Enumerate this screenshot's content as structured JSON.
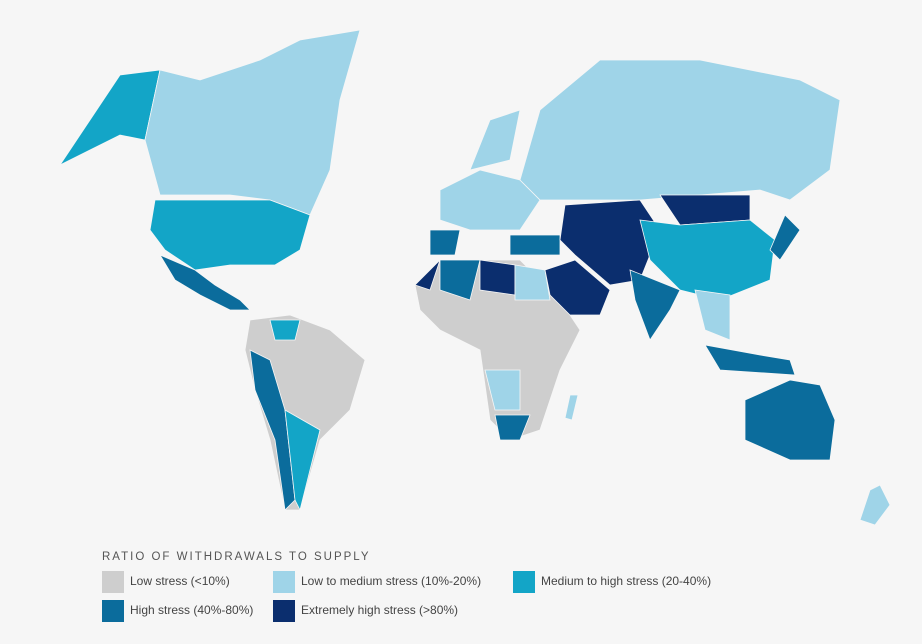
{
  "legend": {
    "title": "RATIO OF WITHDRAWALS TO SUPPLY",
    "items": [
      {
        "label": "Low stress (<10%)",
        "color": "#cecece"
      },
      {
        "label": "Low to medium stress (10%-20%)",
        "color": "#9fd4e8"
      },
      {
        "label": "Medium to high stress (20-40%)",
        "color": "#13a5c7"
      },
      {
        "label": "High stress (40%-80%)",
        "color": "#0b6c9c"
      },
      {
        "label": "Extremely high stress (>80%)",
        "color": "#0b2e6e"
      }
    ]
  }
}
